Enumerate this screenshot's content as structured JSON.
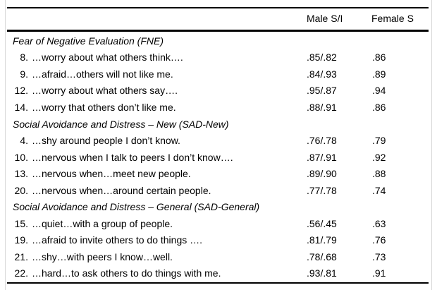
{
  "header": {
    "col_male": "Male S/I",
    "col_female": "Female S"
  },
  "sections": [
    {
      "title": "Fear of Negative Evaluation (FNE)",
      "items": [
        {
          "num": "8.",
          "text": "…worry about what others think….",
          "male": ".85/.82",
          "female": ".86"
        },
        {
          "num": "9.",
          "text": "…afraid…others will not like me.",
          "male": ".84/.93",
          "female": ".89"
        },
        {
          "num": "12.",
          "text": "…worry about what others say….",
          "male": ".95/.87",
          "female": ".94"
        },
        {
          "num": "14.",
          "text": "…worry that others don’t like me.",
          "male": ".88/.91",
          "female": ".86"
        }
      ]
    },
    {
      "title": "Social Avoidance and Distress – New (SAD-New)",
      "items": [
        {
          "num": "4.",
          "text": "…shy around people I don’t know.",
          "male": ".76/.78",
          "female": ".79"
        },
        {
          "num": "10.",
          "text": "…nervous when I talk to peers I don’t know….",
          "male": ".87/.91",
          "female": ".92"
        },
        {
          "num": "13.",
          "text": "…nervous when…meet new people.",
          "male": ".89/.90",
          "female": ".88"
        },
        {
          "num": "20.",
          "text": "…nervous when…around certain people.",
          "male": ".77/.78",
          "female": ".74"
        }
      ]
    },
    {
      "title": "Social Avoidance and Distress – General (SAD-General)",
      "items": [
        {
          "num": "15.",
          "text": "…quiet…with a group of people.",
          "male": ".56/.45",
          "female": ".63"
        },
        {
          "num": "19.",
          "text": "…afraid to invite others to do things ….",
          "male": ".81/.79",
          "female": ".76"
        },
        {
          "num": "21.",
          "text": "…shy…with peers I know…well.",
          "male": ".78/.68",
          "female": ".73"
        },
        {
          "num": "22.",
          "text": "…hard…to ask others to do things with me.",
          "male": ".93/.81",
          "female": ".91"
        }
      ]
    }
  ]
}
